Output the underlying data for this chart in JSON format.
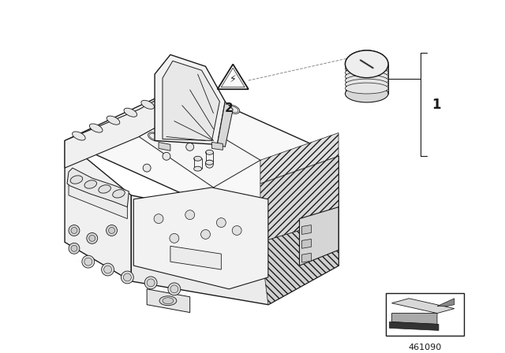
{
  "background_color": "#ffffff",
  "line_color": "#1a1a1a",
  "part_number": "461090",
  "label_1": "1",
  "label_2": "2",
  "figsize": [
    6.4,
    4.48
  ],
  "dpi": 100,
  "main_body_color": "#f5f5f5",
  "shadow_color": "#e0e0e0",
  "dark_color": "#c0c0c0",
  "hatch_color": "#d8d8d8"
}
